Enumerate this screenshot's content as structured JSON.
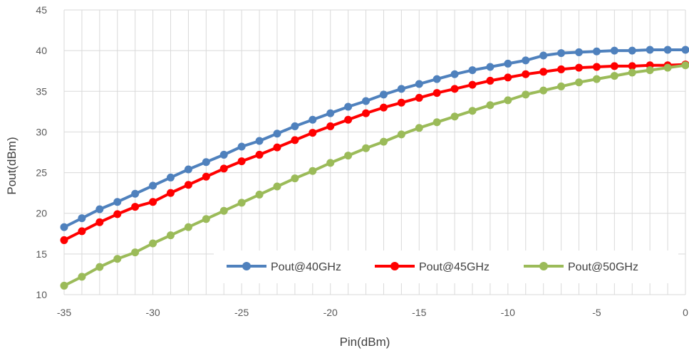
{
  "chart_data": {
    "type": "line",
    "title": "",
    "xlabel": "Pin(dBm)",
    "ylabel": "Pout(dBm)",
    "xlim": [
      -35,
      0
    ],
    "ylim": [
      10,
      45
    ],
    "xticks": [
      -35,
      -30,
      -25,
      -20,
      -15,
      -10,
      -5,
      0
    ],
    "yticks": [
      10,
      15,
      20,
      25,
      30,
      35,
      40,
      45
    ],
    "grid": true,
    "legend_position": "bottom-right",
    "x": [
      -35,
      -34,
      -33,
      -32,
      -31,
      -30,
      -29,
      -28,
      -27,
      -26,
      -25,
      -24,
      -23,
      -22,
      -21,
      -20,
      -19,
      -18,
      -17,
      -16,
      -15,
      -14,
      -13,
      -12,
      -11,
      -10,
      -9,
      -8,
      -7,
      -6,
      -5,
      -4,
      -3,
      -2,
      -1,
      0
    ],
    "series": [
      {
        "name": "Pout@40GHz",
        "color": "#4F81BD",
        "values": [
          18.3,
          19.4,
          20.5,
          21.4,
          22.4,
          23.4,
          24.4,
          25.4,
          26.3,
          27.2,
          28.2,
          28.9,
          29.8,
          30.7,
          31.5,
          32.3,
          33.1,
          33.8,
          34.6,
          35.3,
          35.9,
          36.5,
          37.1,
          37.6,
          38.0,
          38.4,
          38.8,
          39.4,
          39.7,
          39.8,
          39.9,
          40.0,
          40.0,
          40.1,
          40.1,
          40.1
        ]
      },
      {
        "name": "Pout@45GHz",
        "color": "#FF0000",
        "values": [
          16.7,
          17.8,
          18.9,
          19.9,
          20.8,
          21.4,
          22.5,
          23.5,
          24.5,
          25.5,
          26.4,
          27.2,
          28.1,
          29.0,
          29.9,
          30.7,
          31.5,
          32.3,
          33.0,
          33.6,
          34.2,
          34.8,
          35.3,
          35.8,
          36.3,
          36.7,
          37.1,
          37.4,
          37.7,
          37.9,
          38.0,
          38.1,
          38.1,
          38.2,
          38.2,
          38.3
        ]
      },
      {
        "name": "Pout@50GHz",
        "color": "#9BBB59",
        "values": [
          11.1,
          12.2,
          13.4,
          14.4,
          15.2,
          16.3,
          17.3,
          18.3,
          19.3,
          20.3,
          21.3,
          22.3,
          23.3,
          24.3,
          25.2,
          26.2,
          27.1,
          28.0,
          28.8,
          29.7,
          30.5,
          31.2,
          31.9,
          32.6,
          33.3,
          33.9,
          34.6,
          35.1,
          35.6,
          36.1,
          36.5,
          36.9,
          37.3,
          37.6,
          37.9,
          38.2
        ]
      }
    ]
  }
}
